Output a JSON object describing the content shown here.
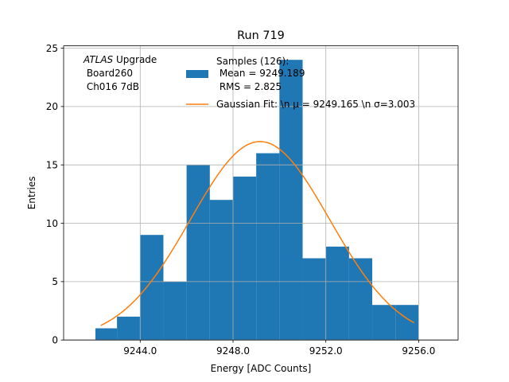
{
  "chart_data": {
    "type": "bar",
    "title": "Run 719",
    "xlabel": "Energy [ADC Counts]",
    "ylabel": "Entries",
    "xlim": [
      9240.7,
      9257.7
    ],
    "ylim": [
      0,
      25.2
    ],
    "grid": true,
    "x_ticks": [
      9244.0,
      9248.0,
      9252.0,
      9256.0
    ],
    "x_tick_labels": [
      "9244.0",
      "9248.0",
      "9252.0",
      "9256.0"
    ],
    "y_ticks": [
      0,
      5,
      10,
      15,
      20,
      25
    ],
    "y_tick_labels": [
      "0",
      "5",
      "10",
      "15",
      "20",
      "25"
    ],
    "bin_edges": [
      9242.07,
      9243.0,
      9244.0,
      9245.0,
      9246.0,
      9247.0,
      9248.0,
      9249.0,
      9250.0,
      9251.0,
      9252.0,
      9253.0,
      9254.0,
      9255.0,
      9256.0
    ],
    "counts": [
      1,
      2,
      9,
      5,
      15,
      12,
      14,
      16,
      24,
      7,
      8,
      7,
      3,
      3
    ],
    "bar_color": "#1f77b4",
    "fit": {
      "mu": 9249.165,
      "sigma": 3.003,
      "amplitude": 17.0,
      "x_range": [
        9242.3,
        9255.8
      ],
      "color": "#ff7f0e"
    },
    "legend": {
      "placement": "top-center",
      "samples_entry": [
        "Samples (126):",
        " Mean = 9249.189",
        " RMS = 2.825"
      ],
      "fit_entry": "Gaussian Fit: \\n μ = 9249.165 \\n σ=3.003"
    },
    "annotation": {
      "atlas": "ATLAS",
      "upgrade": " Upgrade",
      "line2": " Board260",
      "line3": " Ch016 7dB"
    }
  }
}
